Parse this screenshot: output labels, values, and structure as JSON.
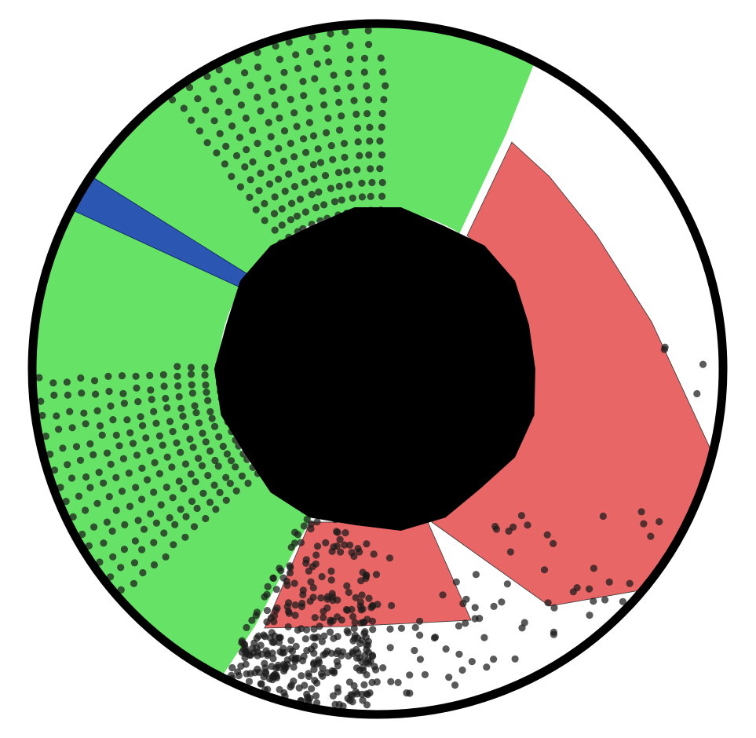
{
  "diagram": {
    "colors": {
      "background": "#ffffff",
      "rim": "#000000",
      "core": "#000000",
      "green": "#66e366",
      "red": "#e86666",
      "blue": "#2b57b3",
      "blue_dark": "#0d1f8c",
      "point": "#1a1a1a"
    },
    "regions": [
      {
        "name": "green-sector-upper",
        "color": "green",
        "ang_start": 180,
        "ang_end": 302,
        "r_outer": 0.99
      },
      {
        "name": "green-sector-lower",
        "color": "green",
        "ang_start": 111,
        "ang_end": 180,
        "r_outer": 0.99
      },
      {
        "name": "red-sector-right",
        "color": "red",
        "ang_start": 64,
        "ang_end": 112,
        "r_outer": 0.935
      },
      {
        "name": "red-sector-bottom",
        "color": "red",
        "ang_start": 112,
        "ang_end": 114,
        "r_outer": 0.935
      },
      {
        "name": "blue-wedge",
        "color": "blue",
        "ang_start": 173,
        "ang_end": 179,
        "r_outer": 1.0
      }
    ],
    "point_fields": [
      {
        "name": "fan-upper-green",
        "angle_center": 252,
        "angle_spread": 38,
        "count": 180,
        "r_min": 0.46,
        "r_max": 0.98
      },
      {
        "name": "fan-lower-left-green",
        "angle_center": 160,
        "angle_spread": 42,
        "count": 200,
        "r_min": 0.46,
        "r_max": 0.98
      },
      {
        "name": "scatter-right-red",
        "angle_center": 70,
        "angle_spread": 55,
        "count": 70,
        "r_min": 0.5,
        "r_max": 0.95
      },
      {
        "name": "cluster-bottom",
        "angle_center": 104,
        "angle_spread": 26,
        "count": 340,
        "r_min": 0.42,
        "r_max": 0.99
      },
      {
        "name": "sparse-outer-right",
        "angle_center": 25,
        "angle_spread": 60,
        "count": 16,
        "r_min": 0.75,
        "r_max": 0.98
      }
    ]
  }
}
